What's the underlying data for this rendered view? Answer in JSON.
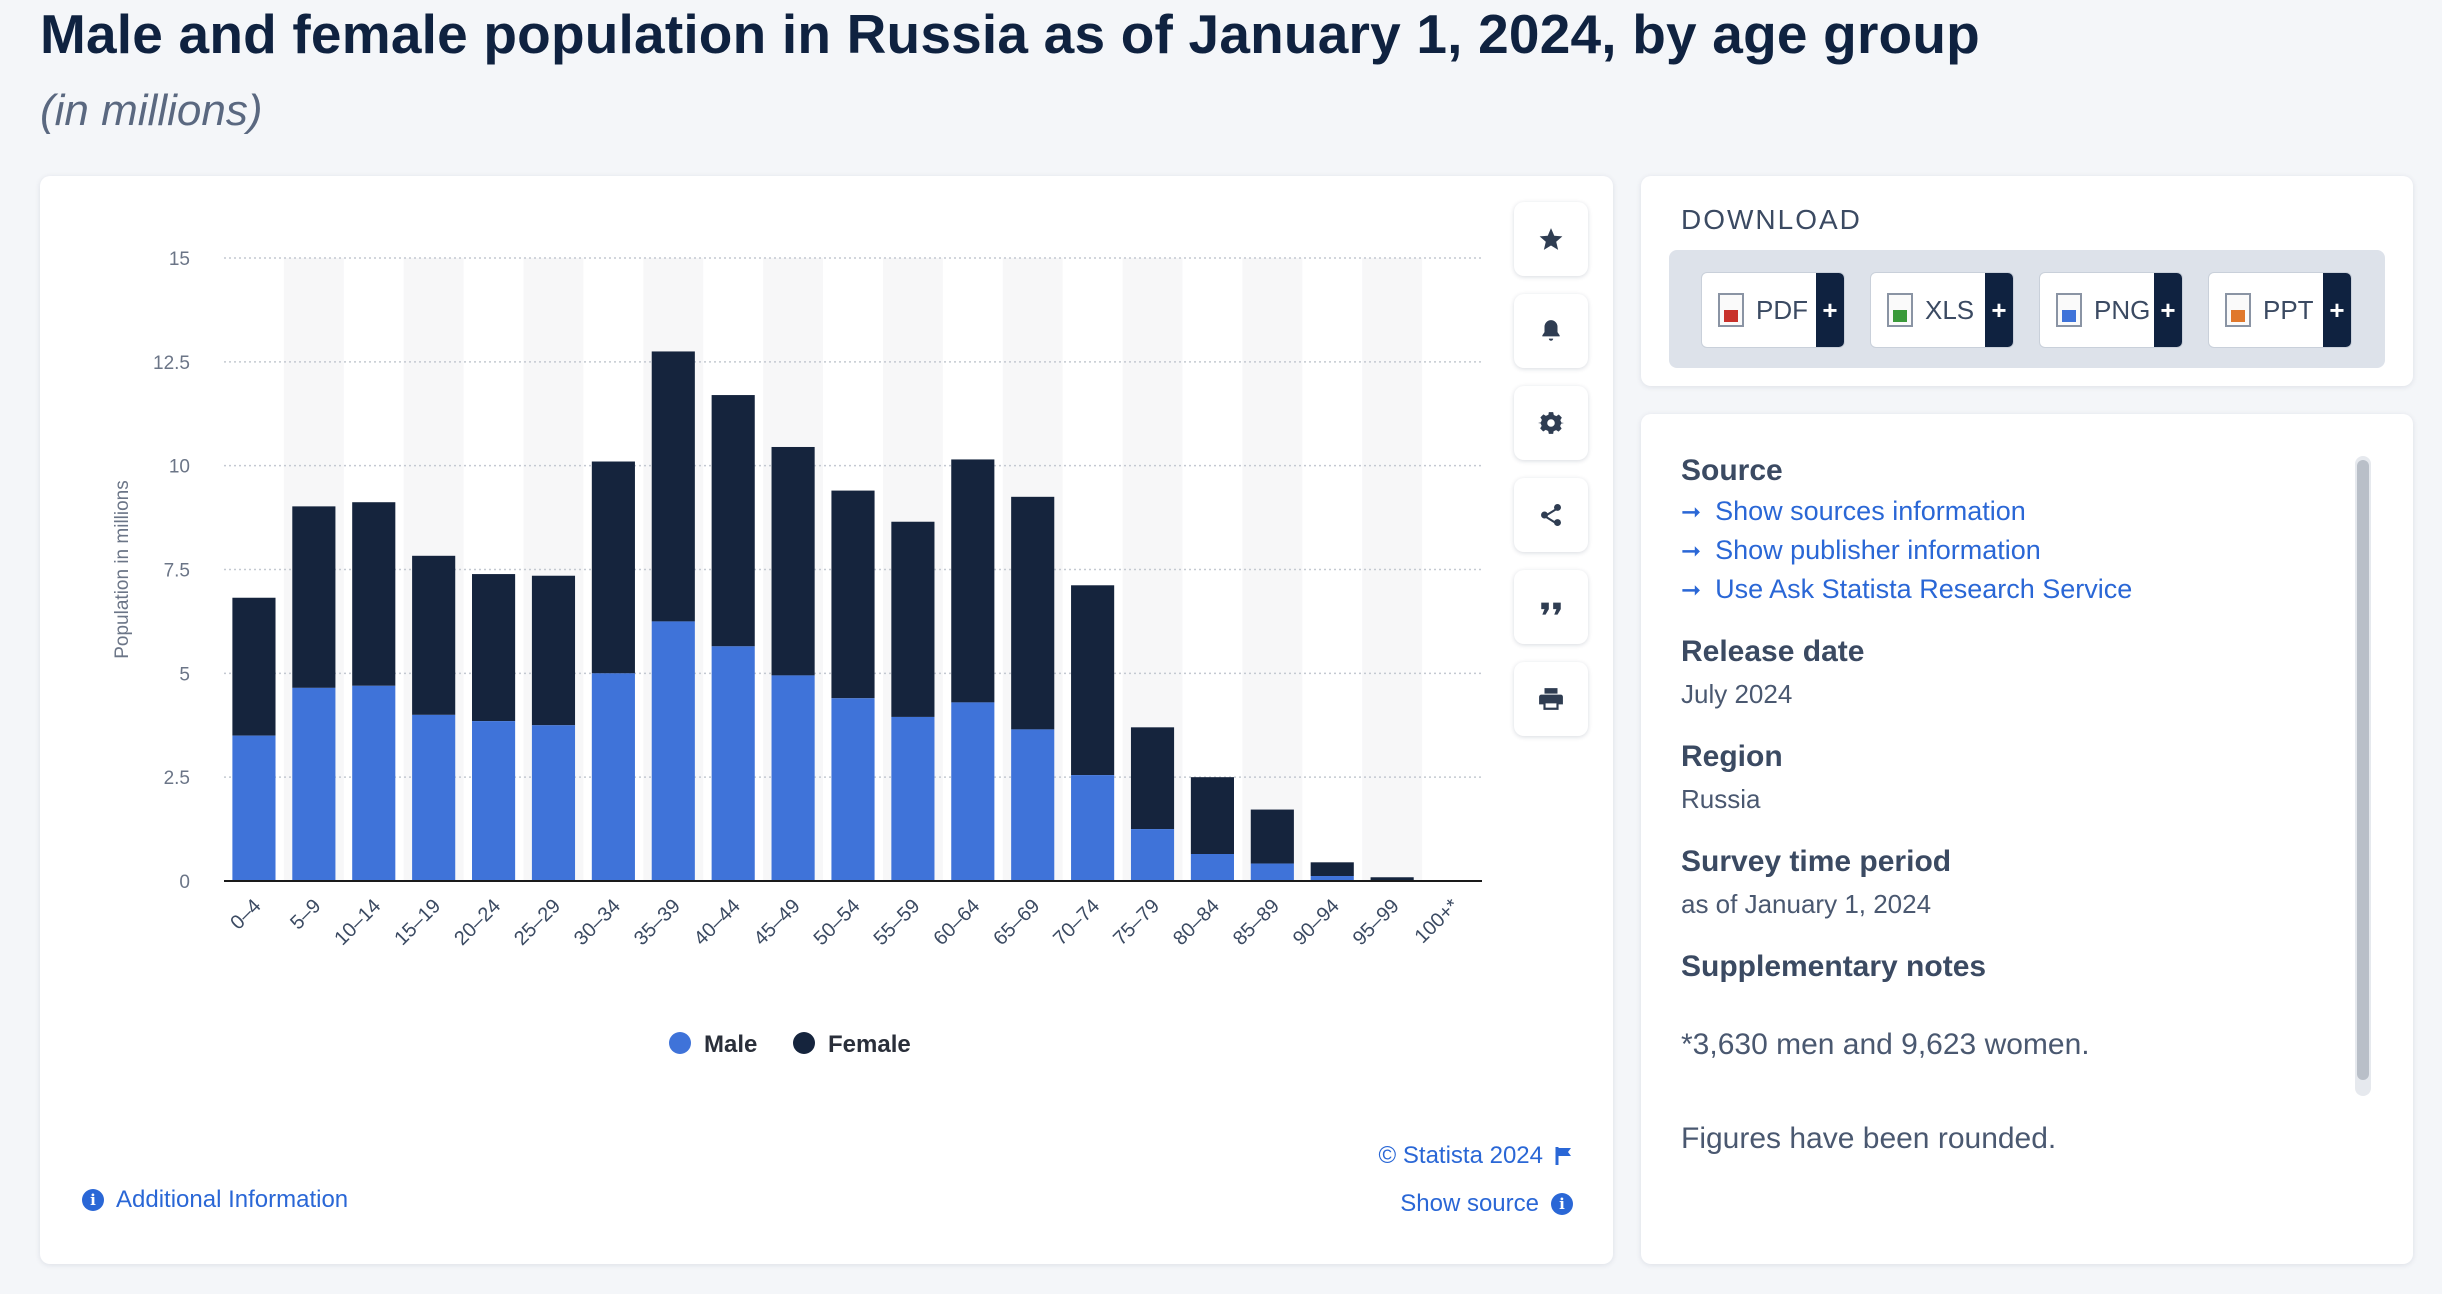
{
  "header": {
    "title": "Male and female population in Russia as of January 1, 2024, by age group",
    "subtitle": "(in millions)"
  },
  "colors": {
    "male": "#3f73d9",
    "female": "#15243d",
    "link": "#2a67d6",
    "grid": "#c4c9d1",
    "band": "#f7f7f8"
  },
  "toolbar": {
    "buttons": [
      {
        "name": "favorite",
        "icon": "star-icon"
      },
      {
        "name": "notification",
        "icon": "bell-icon"
      },
      {
        "name": "settings",
        "icon": "gear-icon"
      },
      {
        "name": "share",
        "icon": "share-icon"
      },
      {
        "name": "citation",
        "icon": "quote-icon"
      },
      {
        "name": "print",
        "icon": "printer-icon"
      }
    ]
  },
  "chart_footer": {
    "additional_info": "Additional Information",
    "credit": "© Statista 2024",
    "show_source": "Show source"
  },
  "chart_data": {
    "type": "bar",
    "stacked": true,
    "categories": [
      "0–4",
      "5–9",
      "10–14",
      "15–19",
      "20–24",
      "25–29",
      "30–34",
      "35–39",
      "40–44",
      "45–49",
      "50–54",
      "55–59",
      "60–64",
      "65–69",
      "70–74",
      "75–79",
      "80–84",
      "85–89",
      "90–94",
      "95–99",
      "100+*"
    ],
    "series": [
      {
        "name": "Male",
        "color": "#3f73d9",
        "values": [
          3.5,
          4.65,
          4.7,
          4.0,
          3.85,
          3.75,
          5.0,
          6.25,
          5.65,
          4.95,
          4.4,
          3.95,
          4.3,
          3.65,
          2.55,
          1.25,
          0.65,
          0.42,
          0.12,
          0.02,
          0.004
        ]
      },
      {
        "name": "Female",
        "color": "#15243d",
        "values": [
          3.32,
          4.37,
          4.42,
          3.83,
          3.54,
          3.6,
          5.1,
          6.5,
          6.05,
          5.5,
          5.0,
          4.7,
          5.85,
          5.6,
          4.57,
          2.45,
          1.85,
          1.3,
          0.33,
          0.07,
          0.01
        ]
      }
    ],
    "ylabel": "Population in millions",
    "xlabel": "",
    "ylim": [
      0,
      15
    ],
    "yticks": [
      0,
      2.5,
      5,
      7.5,
      10,
      12.5,
      15
    ],
    "ytick_labels": [
      "0",
      "2.5",
      "5",
      "7.5",
      "10",
      "12.5",
      "15"
    ],
    "grid": true,
    "legend": "bottom"
  },
  "download": {
    "heading": "DOWNLOAD",
    "buttons": [
      {
        "label": "PDF",
        "mark_color": "#c8312b"
      },
      {
        "label": "XLS",
        "mark_color": "#3a9a3a"
      },
      {
        "label": "PNG",
        "mark_color": "#3f73d9"
      },
      {
        "label": "PPT",
        "mark_color": "#e0782c"
      }
    ],
    "plus": "+"
  },
  "info": {
    "source_heading": "Source",
    "source_links": [
      "Show sources information",
      "Show publisher information",
      "Use Ask Statista Research Service"
    ],
    "release_heading": "Release date",
    "release_value": "July 2024",
    "region_heading": "Region",
    "region_value": "Russia",
    "survey_heading": "Survey time period",
    "survey_value": "as of January 1, 2024",
    "notes_heading": "Supplementary notes",
    "note_1": "*3,630 men and 9,623 women.",
    "note_2": "Figures have been rounded."
  }
}
